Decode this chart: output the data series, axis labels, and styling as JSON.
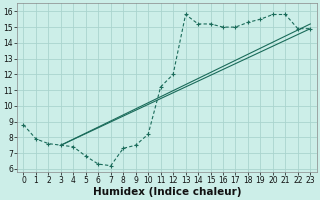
{
  "xlabel": "Humidex (Indice chaleur)",
  "background_color": "#cceee8",
  "grid_color": "#aad4ce",
  "line_color": "#1a6b5a",
  "xlim": [
    -0.5,
    23.5
  ],
  "ylim": [
    5.8,
    16.5
  ],
  "xticks": [
    0,
    1,
    2,
    3,
    4,
    5,
    6,
    7,
    8,
    9,
    10,
    11,
    12,
    13,
    14,
    15,
    16,
    17,
    18,
    19,
    20,
    21,
    22,
    23
  ],
  "yticks": [
    6,
    7,
    8,
    9,
    10,
    11,
    12,
    13,
    14,
    15,
    16
  ],
  "curve1_x": [
    0,
    1,
    2,
    3,
    4,
    5,
    6,
    7,
    8,
    9,
    10,
    11,
    12,
    13,
    14,
    15,
    16,
    17,
    18,
    19,
    20,
    21,
    22,
    23
  ],
  "curve1_y": [
    8.8,
    7.9,
    7.6,
    7.5,
    7.4,
    6.8,
    6.3,
    6.2,
    7.3,
    7.5,
    8.2,
    11.2,
    12.0,
    15.8,
    15.2,
    15.2,
    15.0,
    15.0,
    15.3,
    15.5,
    15.8,
    15.8,
    14.9,
    14.9
  ],
  "line1_x": [
    3,
    23
  ],
  "line1_y": [
    7.5,
    15.2
  ],
  "line2_x": [
    3,
    23
  ],
  "line2_y": [
    7.5,
    14.9
  ],
  "tick_fontsize": 5.5,
  "label_fontsize": 7.5
}
